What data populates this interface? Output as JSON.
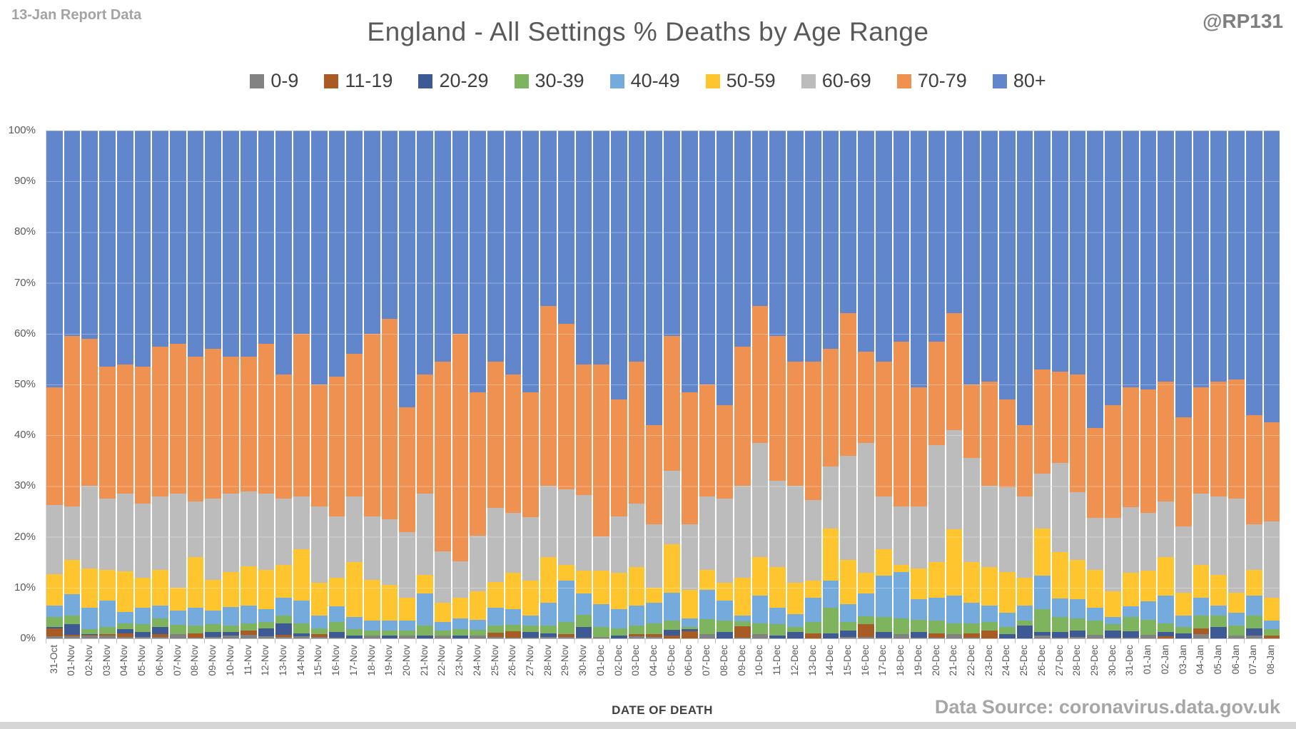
{
  "header": {
    "report_label": "13-Jan Report Data",
    "title": "England - All Settings % Deaths by Age Range",
    "handle": "@RP131"
  },
  "y_axis": {
    "ticks": [
      "100%",
      "90%",
      "80%",
      "70%",
      "60%",
      "50%",
      "40%",
      "30%",
      "20%",
      "10%",
      "0%"
    ]
  },
  "x_axis": {
    "title": "DATE OF DEATH"
  },
  "footer": {
    "source": "Data Source: coronavirus.data.gov.uk"
  },
  "legend_colors": {
    "grid": "#d9d9d9"
  },
  "chart_data": {
    "type": "bar",
    "stacked_percent": true,
    "title": "England - All Settings % Deaths by Age Range",
    "xlabel": "DATE OF DEATH",
    "ylabel": "",
    "ylim": [
      0,
      100
    ],
    "grid": true,
    "legend_position": "top",
    "categories": [
      "31-Oct",
      "01-Nov",
      "02-Nov",
      "03-Nov",
      "04-Nov",
      "05-Nov",
      "06-Nov",
      "07-Nov",
      "08-Nov",
      "09-Nov",
      "10-Nov",
      "11-Nov",
      "12-Nov",
      "13-Nov",
      "14-Nov",
      "15-Nov",
      "16-Nov",
      "17-Nov",
      "18-Nov",
      "19-Nov",
      "20-Nov",
      "21-Nov",
      "22-Nov",
      "23-Nov",
      "24-Nov",
      "25-Nov",
      "26-Nov",
      "27-Nov",
      "28-Nov",
      "29-Nov",
      "30-Nov",
      "01-Dec",
      "02-Dec",
      "03-Dec",
      "04-Dec",
      "05-Dec",
      "06-Dec",
      "07-Dec",
      "08-Dec",
      "09-Dec",
      "10-Dec",
      "11-Dec",
      "12-Dec",
      "13-Dec",
      "14-Dec",
      "15-Dec",
      "16-Dec",
      "17-Dec",
      "18-Dec",
      "19-Dec",
      "20-Dec",
      "21-Dec",
      "22-Dec",
      "23-Dec",
      "24-Dec",
      "25-Dec",
      "26-Dec",
      "27-Dec",
      "28-Dec",
      "29-Dec",
      "30-Dec",
      "31-Dec",
      "01-Jan",
      "02-Jan",
      "03-Jan",
      "04-Jan",
      "05-Jan",
      "06-Jan",
      "07-Jan",
      "08-Jan"
    ],
    "series": [
      {
        "name": "0-9",
        "color": "#828282",
        "values": [
          0.4,
          0.4,
          0.5,
          0.6,
          0.3,
          0.3,
          0.3,
          0.9,
          0.2,
          0.3,
          0.5,
          0.7,
          0.4,
          0.3,
          0.4,
          0.3,
          0.2,
          0.0,
          0.5,
          0.0,
          0.5,
          0.0,
          0.5,
          0.0,
          0.5,
          0.3,
          0.2,
          0.1,
          0.3,
          0.3,
          0.2,
          0.3,
          0.0,
          0.4,
          0.3,
          0.0,
          0.0,
          0.8,
          0.0,
          0.2,
          0.8,
          0.0,
          0.0,
          0.0,
          0.0,
          0.3,
          0.3,
          0.2,
          0.8,
          0.2,
          0.2,
          0.8,
          0.2,
          0.0,
          0.0,
          0.0,
          0.5,
          0.2,
          0.3,
          0.7,
          0.2,
          0.2,
          0.7,
          0.0,
          0.0,
          0.8,
          0.0,
          0.5,
          0.5,
          0.0
        ]
      },
      {
        "name": "11-19",
        "color": "#a85b22",
        "values": [
          1.5,
          0.3,
          0.2,
          0.2,
          0.7,
          0.0,
          0.5,
          0.0,
          0.8,
          0.0,
          0.0,
          0.8,
          0.0,
          0.4,
          0.0,
          0.5,
          0.0,
          0.0,
          0.0,
          0.0,
          0.0,
          0.0,
          0.0,
          0.0,
          0.0,
          0.8,
          1.2,
          0.0,
          0.0,
          0.5,
          0.0,
          0.0,
          0.0,
          0.4,
          0.5,
          0.5,
          1.4,
          0.0,
          0.0,
          2.2,
          0.0,
          0.0,
          0.0,
          1.0,
          0.0,
          0.0,
          2.5,
          0.0,
          0.0,
          0.0,
          0.8,
          0.0,
          0.8,
          1.5,
          0.0,
          0.0,
          0.0,
          0.0,
          0.0,
          0.0,
          0.0,
          0.0,
          0.0,
          0.4,
          0.0,
          1.2,
          0.0,
          0.0,
          0.0,
          0.6
        ]
      },
      {
        "name": "20-29",
        "color": "#3e5a94",
        "values": [
          0.3,
          2.1,
          0.2,
          0.0,
          0.8,
          1.0,
          1.5,
          0.0,
          0.0,
          1.0,
          0.7,
          0.0,
          1.6,
          2.3,
          0.6,
          0.0,
          1.0,
          0.5,
          0.0,
          0.5,
          0.0,
          0.5,
          0.0,
          0.5,
          0.0,
          0.0,
          0.0,
          1.1,
          0.7,
          0.0,
          2.1,
          0.0,
          0.5,
          0.0,
          0.0,
          1.2,
          0.4,
          0.0,
          1.3,
          0.0,
          0.0,
          0.5,
          1.3,
          0.0,
          1.0,
          1.2,
          0.0,
          1.0,
          0.0,
          1.0,
          0.0,
          0.0,
          0.0,
          0.0,
          0.8,
          2.5,
          0.7,
          1.0,
          1.2,
          0.0,
          1.4,
          1.2,
          0.0,
          0.8,
          1.0,
          0.0,
          2.2,
          0.0,
          1.5,
          0.0
        ]
      },
      {
        "name": "30-39",
        "color": "#7eb45e",
        "values": [
          2.0,
          1.7,
          1.0,
          1.5,
          1.2,
          1.5,
          1.7,
          1.8,
          1.5,
          1.5,
          1.3,
          1.5,
          1.2,
          1.5,
          2.0,
          1.2,
          2.0,
          1.3,
          1.0,
          1.0,
          1.1,
          2.0,
          1.0,
          1.3,
          1.2,
          1.4,
          1.3,
          1.4,
          1.5,
          2.4,
          2.4,
          1.9,
          1.5,
          1.8,
          2.2,
          1.8,
          0.5,
          3.0,
          2.2,
          1.0,
          2.2,
          2.3,
          1.0,
          2.2,
          5.0,
          1.7,
          1.5,
          3.0,
          3.2,
          2.5,
          2.5,
          2.2,
          2.0,
          1.8,
          1.5,
          1.0,
          4.5,
          3.0,
          2.5,
          2.8,
          1.2,
          2.8,
          3.0,
          1.8,
          1.2,
          2.5,
          2.3,
          2.0,
          2.5,
          1.2
        ]
      },
      {
        "name": "40-49",
        "color": "#74aadc",
        "values": [
          2.2,
          4.2,
          4.2,
          5.2,
          2.2,
          3.2,
          2.5,
          2.8,
          3.5,
          2.7,
          3.7,
          3.5,
          2.6,
          3.5,
          4.5,
          2.5,
          3.1,
          2.4,
          2.0,
          2.0,
          1.9,
          6.3,
          1.7,
          2.2,
          2.0,
          3.6,
          3.0,
          1.9,
          4.5,
          8.2,
          4.1,
          4.6,
          3.7,
          3.9,
          4.0,
          5.5,
          1.7,
          5.7,
          4.0,
          1.1,
          5.5,
          3.2,
          2.5,
          4.8,
          5.4,
          3.6,
          4.5,
          8.2,
          9.0,
          4.0,
          4.5,
          5.5,
          4.0,
          3.2,
          2.7,
          3.0,
          6.7,
          3.6,
          3.8,
          2.5,
          1.4,
          2.1,
          3.6,
          5.5,
          2.3,
          3.5,
          2.0,
          2.5,
          4.0,
          1.7
        ]
      },
      {
        "name": "50-59",
        "color": "#fec52e",
        "values": [
          6.2,
          6.7,
          7.7,
          6.0,
          8.0,
          6.0,
          7.0,
          4.5,
          10.0,
          6.0,
          6.8,
          7.7,
          7.7,
          6.5,
          10.0,
          6.5,
          5.7,
          10.8,
          8.0,
          7.0,
          4.5,
          3.7,
          3.8,
          4.0,
          5.6,
          5.0,
          7.2,
          6.9,
          9.0,
          3.1,
          4.6,
          6.6,
          7.2,
          7.5,
          3.0,
          9.5,
          5.5,
          4.0,
          3.5,
          7.5,
          7.5,
          8.0,
          6.2,
          3.4,
          10.2,
          8.7,
          4.1,
          5.1,
          1.5,
          6.0,
          7.0,
          13.0,
          8.0,
          7.5,
          8.0,
          5.5,
          9.2,
          9.2,
          7.7,
          7.5,
          5.1,
          6.6,
          6.1,
          7.5,
          4.5,
          6.5,
          6.0,
          4.0,
          5.0,
          4.5
        ]
      },
      {
        "name": "60-69",
        "color": "#bcbcbc",
        "values": [
          13.7,
          10.6,
          16.2,
          14.0,
          15.3,
          14.5,
          14.5,
          18.5,
          11.0,
          16.0,
          15.5,
          14.8,
          15.0,
          13.0,
          10.5,
          15.0,
          12.0,
          13.0,
          12.5,
          13.0,
          13.0,
          16.0,
          10.2,
          7.2,
          11.0,
          14.6,
          11.8,
          12.5,
          14.0,
          14.8,
          14.9,
          6.7,
          11.1,
          12.5,
          12.5,
          14.5,
          13.0,
          14.5,
          16.5,
          18.0,
          22.5,
          17.0,
          19.0,
          15.9,
          12.3,
          20.5,
          25.6,
          10.5,
          11.5,
          12.3,
          23.0,
          19.5,
          20.5,
          16.0,
          16.8,
          16.0,
          10.9,
          17.5,
          13.3,
          10.2,
          14.4,
          12.9,
          11.3,
          11.0,
          13.0,
          14.0,
          15.5,
          18.5,
          9.0,
          15.0
        ]
      },
      {
        "name": "70-79",
        "color": "#ef9150",
        "values": [
          23.2,
          33.5,
          29.0,
          26.0,
          25.5,
          27.0,
          29.5,
          29.5,
          28.5,
          29.5,
          27.0,
          26.5,
          29.5,
          24.5,
          32.0,
          24.0,
          27.5,
          28.0,
          36.0,
          39.5,
          24.5,
          23.5,
          37.3,
          44.8,
          28.2,
          28.8,
          27.3,
          24.6,
          35.5,
          32.7,
          25.7,
          33.9,
          23.0,
          28.0,
          19.5,
          26.5,
          26.0,
          22.0,
          18.5,
          27.5,
          27.0,
          28.5,
          24.5,
          27.2,
          23.1,
          28.0,
          18.0,
          26.5,
          32.5,
          23.5,
          20.5,
          23.0,
          14.5,
          20.5,
          17.2,
          14.0,
          20.5,
          18.0,
          23.2,
          17.8,
          22.3,
          23.7,
          24.3,
          23.5,
          21.5,
          21.0,
          22.5,
          23.5,
          21.5,
          19.5
        ]
      },
      {
        "name": "80+",
        "color": "#6286cc",
        "values": [
          50.5,
          40.5,
          41.0,
          46.5,
          46.0,
          46.5,
          42.5,
          42.0,
          44.5,
          43.0,
          44.5,
          44.5,
          42.0,
          48.0,
          40.0,
          50.0,
          48.5,
          44.0,
          40.0,
          37.0,
          54.5,
          48.0,
          45.5,
          40.0,
          51.5,
          45.5,
          48.0,
          51.5,
          34.5,
          38.0,
          46.0,
          46.0,
          53.0,
          45.5,
          58.0,
          40.5,
          51.5,
          50.0,
          54.0,
          42.5,
          34.5,
          40.5,
          45.5,
          45.5,
          43.0,
          36.0,
          43.5,
          45.5,
          41.5,
          50.5,
          41.5,
          36.0,
          50.0,
          49.5,
          53.0,
          58.0,
          47.0,
          47.5,
          48.0,
          58.5,
          54.0,
          50.5,
          51.0,
          49.5,
          56.5,
          50.5,
          49.5,
          49.0,
          56.0,
          57.5
        ]
      }
    ]
  }
}
